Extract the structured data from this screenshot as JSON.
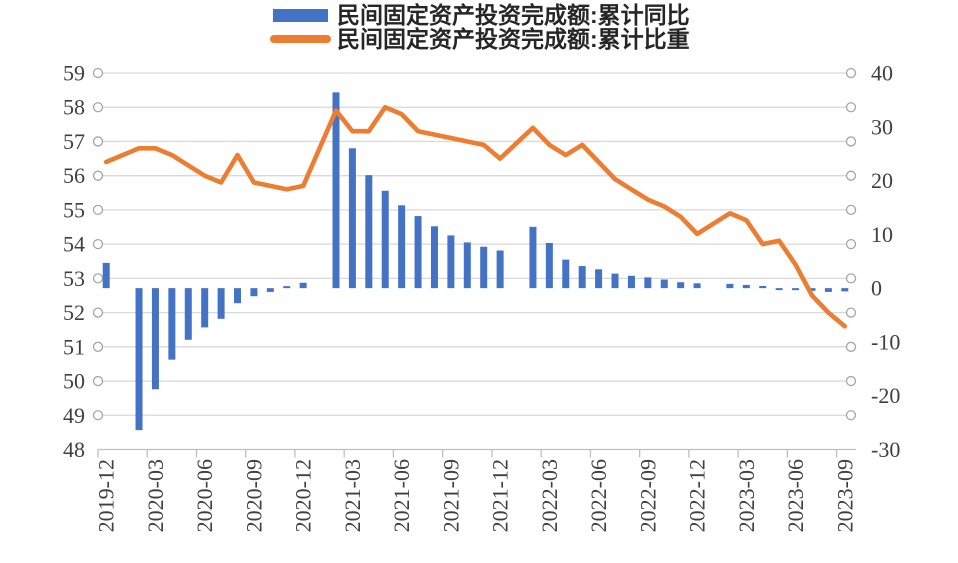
{
  "legend": [
    {
      "label": "民间固定资产投资完成额:累计同比",
      "marker": "bar-swatch",
      "color": "#4472C4"
    },
    {
      "label": "民间固定资产投资完成额:累计比重",
      "marker": "line-swatch",
      "color": "#ED7D31"
    }
  ],
  "chart_data": {
    "type": "combo",
    "categories": [
      "2019-12",
      "2020-01",
      "2020-02",
      "2020-03",
      "2020-04",
      "2020-05",
      "2020-06",
      "2020-07",
      "2020-08",
      "2020-09",
      "2020-10",
      "2020-11",
      "2020-12",
      "2021-01",
      "2021-02",
      "2021-03",
      "2021-04",
      "2021-05",
      "2021-06",
      "2021-07",
      "2021-08",
      "2021-09",
      "2021-10",
      "2021-11",
      "2021-12",
      "2022-01",
      "2022-02",
      "2022-03",
      "2022-04",
      "2022-05",
      "2022-06",
      "2022-07",
      "2022-08",
      "2022-09",
      "2022-10",
      "2022-11",
      "2022-12",
      "2023-01",
      "2023-02",
      "2023-03",
      "2023-04",
      "2023-05",
      "2023-06",
      "2023-07",
      "2023-08",
      "2023-09"
    ],
    "x_axis": {
      "tick_labels": [
        "2019-12",
        "2020-03",
        "2020-06",
        "2020-09",
        "2020-12",
        "2021-03",
        "2021-06",
        "2021-09",
        "2021-12",
        "2022-03",
        "2022-06",
        "2022-09",
        "2022-12",
        "2023-03",
        "2023-06",
        "2023-09"
      ],
      "tick_every": 3
    },
    "left_axis": {
      "min": 48,
      "max": 59,
      "ticks": [
        59,
        58,
        57,
        56,
        55,
        54,
        53,
        52,
        51,
        50,
        49,
        48
      ]
    },
    "right_axis": {
      "min": -30,
      "max": 40,
      "ticks": [
        40,
        30,
        20,
        10,
        0,
        -10,
        -20,
        -30
      ]
    },
    "series": [
      {
        "name": "民间固定资产投资完成额:累计同比",
        "type": "bar",
        "axis": "right",
        "color": "#4472C4",
        "values": [
          4.7,
          null,
          -26.4,
          -18.8,
          -13.3,
          -9.6,
          -7.3,
          -5.7,
          -2.8,
          -1.5,
          -0.7,
          0.2,
          1.0,
          null,
          36.4,
          26.0,
          21.0,
          18.1,
          15.4,
          13.4,
          11.5,
          9.8,
          8.5,
          7.7,
          7.0,
          null,
          11.4,
          8.4,
          5.3,
          4.1,
          3.5,
          2.7,
          2.3,
          2.0,
          1.6,
          1.1,
          0.9,
          null,
          0.8,
          0.6,
          0.4,
          -0.1,
          -0.2,
          -0.5,
          -0.7,
          -0.6
        ]
      },
      {
        "name": "民间固定资产投资完成额:累计比重",
        "type": "line",
        "axis": "left",
        "color": "#ED7D31",
        "values": [
          56.4,
          null,
          56.8,
          56.8,
          56.6,
          56.3,
          56.0,
          55.8,
          56.6,
          55.8,
          55.7,
          55.6,
          55.7,
          null,
          57.9,
          57.3,
          57.3,
          58.0,
          57.8,
          57.3,
          57.2,
          57.1,
          57.0,
          56.9,
          56.5,
          null,
          57.4,
          56.9,
          56.6,
          56.9,
          56.4,
          55.9,
          55.6,
          55.3,
          55.1,
          54.8,
          54.3,
          null,
          54.9,
          54.7,
          54.0,
          54.1,
          53.4,
          52.5,
          52.0,
          51.6
        ]
      }
    ],
    "grid": true,
    "legend_position": "top"
  },
  "style": {
    "grid_color": "#D9D9D9",
    "axis_line_color": "#BFBFBF",
    "tick_circle_color": "#A6A6A6",
    "axis_text_color": "#404040"
  }
}
